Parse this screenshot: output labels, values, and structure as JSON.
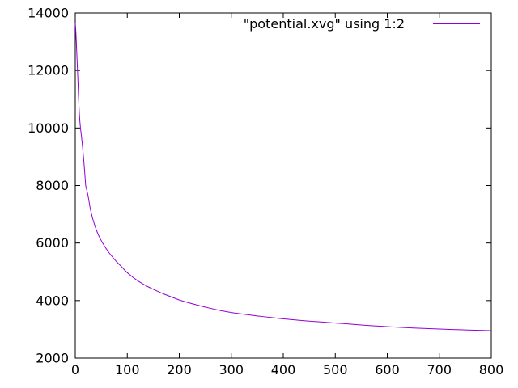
{
  "chart_data": {
    "type": "line",
    "title": "",
    "xlabel": "",
    "ylabel": "",
    "grid": false,
    "legend": {
      "label": "\"potential.xvg\" using 1:2",
      "position": "top-right-inside"
    },
    "axes": {
      "x": {
        "min": 0,
        "max": 800,
        "ticks": [
          0,
          100,
          200,
          300,
          400,
          500,
          600,
          700,
          800
        ]
      },
      "y": {
        "min": 2000,
        "max": 14000,
        "ticks": [
          2000,
          4000,
          6000,
          8000,
          10000,
          12000,
          14000
        ]
      }
    },
    "colors": {
      "background": "#ffffff",
      "border": "#000000",
      "text": "#000000",
      "series": "#9400d3"
    },
    "series": [
      {
        "name": "\"potential.xvg\" using 1:2",
        "color": "#9400d3",
        "points": [
          [
            0,
            13650
          ],
          [
            1,
            13400
          ],
          [
            2,
            13000
          ],
          [
            3,
            12550
          ],
          [
            4,
            12150
          ],
          [
            5,
            11700
          ],
          [
            6,
            11200
          ],
          [
            7,
            10800
          ],
          [
            8,
            10450
          ],
          [
            9,
            10200
          ],
          [
            10,
            10000
          ],
          [
            12,
            9700
          ],
          [
            14,
            9350
          ],
          [
            16,
            8950
          ],
          [
            18,
            8500
          ],
          [
            20,
            8000
          ],
          [
            22,
            7850
          ],
          [
            24,
            7700
          ],
          [
            26,
            7500
          ],
          [
            28,
            7280
          ],
          [
            30,
            7100
          ],
          [
            33,
            6880
          ],
          [
            36,
            6700
          ],
          [
            40,
            6480
          ],
          [
            44,
            6300
          ],
          [
            48,
            6150
          ],
          [
            52,
            6020
          ],
          [
            56,
            5900
          ],
          [
            60,
            5790
          ],
          [
            65,
            5660
          ],
          [
            70,
            5550
          ],
          [
            75,
            5440
          ],
          [
            80,
            5340
          ],
          [
            85,
            5250
          ],
          [
            90,
            5160
          ],
          [
            95,
            5060
          ],
          [
            100,
            4970
          ],
          [
            110,
            4820
          ],
          [
            120,
            4690
          ],
          [
            130,
            4580
          ],
          [
            140,
            4480
          ],
          [
            150,
            4390
          ],
          [
            160,
            4310
          ],
          [
            170,
            4230
          ],
          [
            180,
            4160
          ],
          [
            190,
            4090
          ],
          [
            200,
            4020
          ],
          [
            215,
            3940
          ],
          [
            230,
            3865
          ],
          [
            245,
            3795
          ],
          [
            260,
            3730
          ],
          [
            275,
            3670
          ],
          [
            290,
            3615
          ],
          [
            305,
            3570
          ],
          [
            320,
            3535
          ],
          [
            335,
            3500
          ],
          [
            350,
            3465
          ],
          [
            365,
            3435
          ],
          [
            380,
            3405
          ],
          [
            395,
            3375
          ],
          [
            410,
            3350
          ],
          [
            425,
            3325
          ],
          [
            440,
            3300
          ],
          [
            455,
            3280
          ],
          [
            470,
            3260
          ],
          [
            485,
            3240
          ],
          [
            500,
            3220
          ],
          [
            515,
            3200
          ],
          [
            530,
            3180
          ],
          [
            545,
            3160
          ],
          [
            560,
            3140
          ],
          [
            575,
            3120
          ],
          [
            590,
            3105
          ],
          [
            605,
            3090
          ],
          [
            620,
            3075
          ],
          [
            635,
            3060
          ],
          [
            650,
            3048
          ],
          [
            665,
            3036
          ],
          [
            680,
            3025
          ],
          [
            695,
            3014
          ],
          [
            710,
            3004
          ],
          [
            725,
            2995
          ],
          [
            740,
            2986
          ],
          [
            755,
            2978
          ],
          [
            770,
            2970
          ],
          [
            785,
            2963
          ],
          [
            800,
            2957
          ]
        ]
      }
    ]
  }
}
